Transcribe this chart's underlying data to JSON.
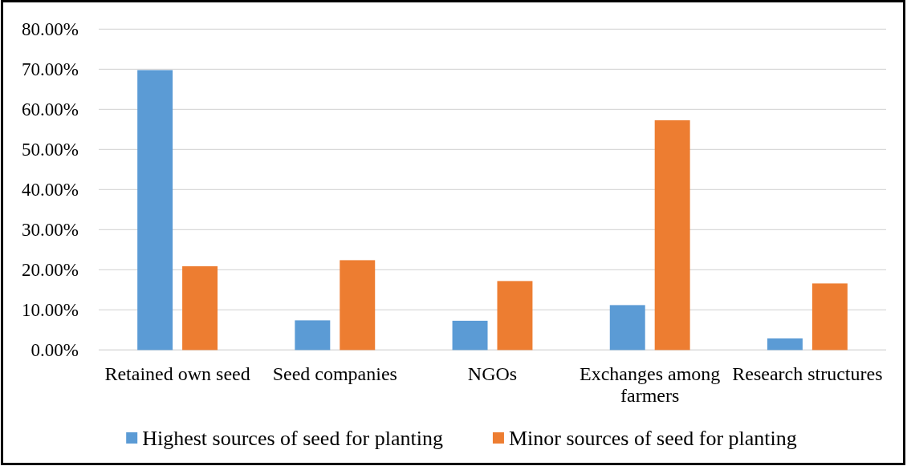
{
  "chart_data": {
    "type": "bar",
    "categories": [
      "Retained own seed",
      "Seed companies",
      "NGOs",
      "Exchanges among farmers",
      "Research structures"
    ],
    "series": [
      {
        "name": "Highest sources of seed for planting",
        "color": "#5b9bd5",
        "values": [
          69.8,
          7.4,
          7.3,
          11.2,
          2.9
        ]
      },
      {
        "name": "Minor sources of seed for planting",
        "color": "#ed7d31",
        "values": [
          20.9,
          22.4,
          17.2,
          57.3,
          16.6
        ]
      }
    ],
    "ylim": [
      0,
      80
    ],
    "yticks": [
      {
        "value": 0,
        "label": "0.00%"
      },
      {
        "value": 10,
        "label": "10.00%"
      },
      {
        "value": 20,
        "label": "20.00%"
      },
      {
        "value": 30,
        "label": "30.00%"
      },
      {
        "value": 40,
        "label": "40.00%"
      },
      {
        "value": 50,
        "label": "50.00%"
      },
      {
        "value": 60,
        "label": "60.00%"
      },
      {
        "value": 70,
        "label": "70.00%"
      },
      {
        "value": 80,
        "label": "80.00%"
      }
    ],
    "grid": "y",
    "legend": "bottom"
  }
}
